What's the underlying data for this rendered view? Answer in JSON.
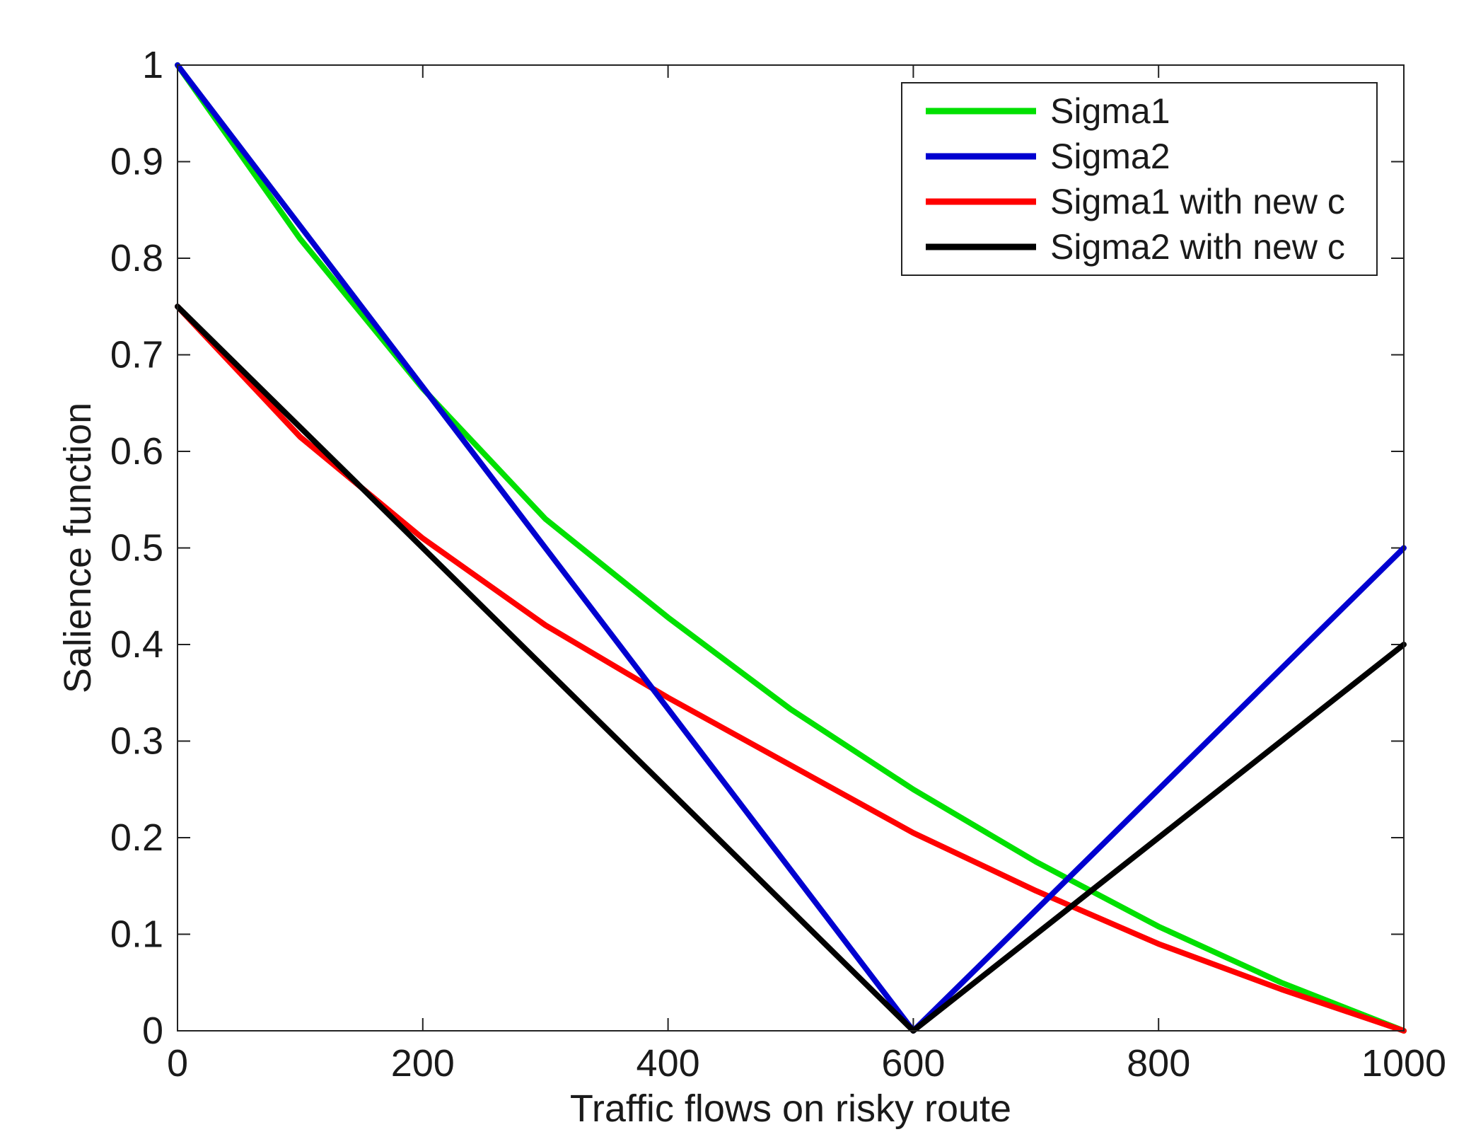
{
  "chart_data": {
    "type": "line",
    "title": "",
    "xlabel": "Traffic flows on risky route",
    "ylabel": "Salience function",
    "xlim": [
      0,
      1000
    ],
    "ylim": [
      0,
      1
    ],
    "xticks": [
      0,
      200,
      400,
      600,
      800,
      1000
    ],
    "xtick_labels": [
      "0",
      "200",
      "400",
      "600",
      "800",
      "1000"
    ],
    "yticks": [
      0,
      0.1,
      0.2,
      0.3,
      0.4,
      0.5,
      0.6,
      0.7,
      0.8,
      0.9,
      1
    ],
    "ytick_labels": [
      "0",
      "0.1",
      "0.2",
      "0.3",
      "0.4",
      "0.5",
      "0.6",
      "0.7",
      "0.8",
      "0.9",
      "1"
    ],
    "grid": false,
    "legend_position": "top-right",
    "series": [
      {
        "name": "Sigma1",
        "color": "#00e000",
        "x": [
          0,
          100,
          200,
          300,
          400,
          500,
          600,
          700,
          800,
          900,
          1000
        ],
        "y": [
          1.0,
          0.82,
          0.665,
          0.53,
          0.428,
          0.333,
          0.25,
          0.175,
          0.108,
          0.05,
          0.0
        ]
      },
      {
        "name": "Sigma2",
        "color": "#0000d0",
        "x": [
          0,
          600,
          1000
        ],
        "y": [
          1.0,
          0.0,
          0.5
        ]
      },
      {
        "name": "Sigma1 with new c",
        "color": "#ff0000",
        "x": [
          0,
          100,
          200,
          300,
          400,
          500,
          600,
          700,
          800,
          900,
          1000
        ],
        "y": [
          0.75,
          0.615,
          0.51,
          0.42,
          0.345,
          0.275,
          0.205,
          0.145,
          0.09,
          0.043,
          0.0
        ]
      },
      {
        "name": "Sigma2 with new c",
        "color": "#000000",
        "x": [
          0,
          600,
          1000
        ],
        "y": [
          0.75,
          0.0,
          0.4
        ]
      }
    ]
  }
}
